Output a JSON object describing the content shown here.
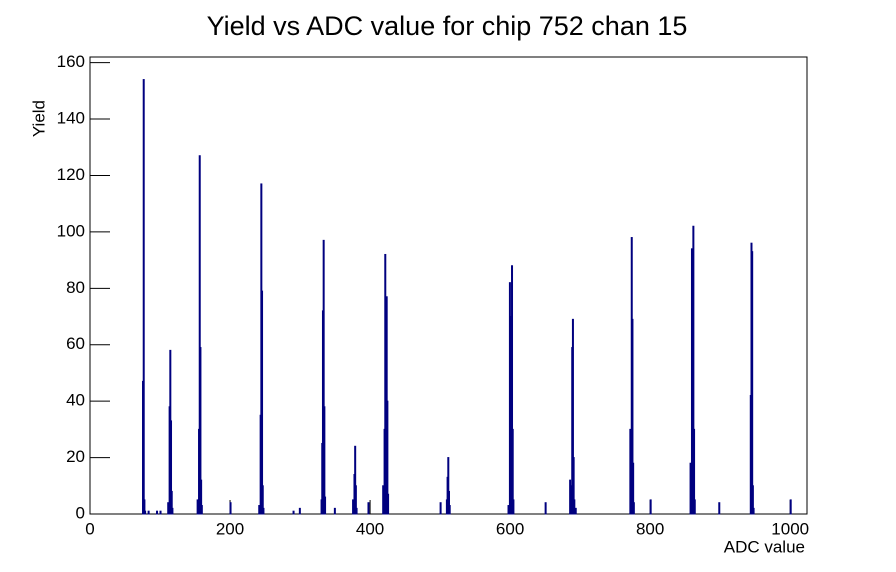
{
  "chart_data": {
    "type": "bar",
    "title": "Yield vs ADC value for chip 752 chan 15",
    "x_label": "ADC value",
    "y_label": "Yield",
    "color": "#00007f",
    "xlim": [
      0,
      1024
    ],
    "ylim": [
      0,
      162
    ],
    "xticks": [
      0,
      200,
      400,
      600,
      800,
      1000
    ],
    "yticks": [
      0,
      20,
      40,
      60,
      80,
      100,
      120,
      140,
      160
    ],
    "x": [
      75,
      76,
      77,
      78,
      83,
      95,
      100,
      111,
      113,
      114,
      115,
      116,
      117,
      153,
      155,
      156,
      157,
      158,
      159,
      200,
      241,
      243,
      244,
      245,
      246,
      247,
      290,
      299,
      330,
      331,
      332,
      333,
      334,
      335,
      349,
      375,
      377,
      378,
      379,
      380,
      397,
      418,
      420,
      421,
      423,
      424,
      425,
      500,
      509,
      510,
      511,
      512,
      513,
      597,
      599,
      600,
      602,
      603,
      604,
      650,
      685,
      686,
      688,
      689,
      690,
      691,
      693,
      771,
      773,
      774,
      775,
      776,
      800,
      857,
      859,
      860,
      861,
      862,
      863,
      898,
      943,
      944,
      945,
      946,
      947,
      1000
    ],
    "values": [
      47,
      154,
      5,
      1,
      1,
      1,
      1,
      4,
      38,
      58,
      33,
      8,
      2,
      5,
      30,
      127,
      59,
      12,
      3,
      4,
      3,
      35,
      117,
      79,
      10,
      2,
      1,
      2,
      5,
      25,
      72,
      97,
      38,
      6,
      2,
      5,
      14,
      24,
      10,
      2,
      4,
      10,
      30,
      92,
      77,
      40,
      7,
      4,
      5,
      13,
      20,
      8,
      3,
      3,
      82,
      70,
      88,
      30,
      5,
      4,
      12,
      10,
      59,
      69,
      20,
      5,
      2,
      30,
      98,
      69,
      18,
      4,
      5,
      18,
      94,
      30,
      102,
      30,
      5,
      4,
      42,
      96,
      93,
      10,
      2,
      5
    ]
  }
}
